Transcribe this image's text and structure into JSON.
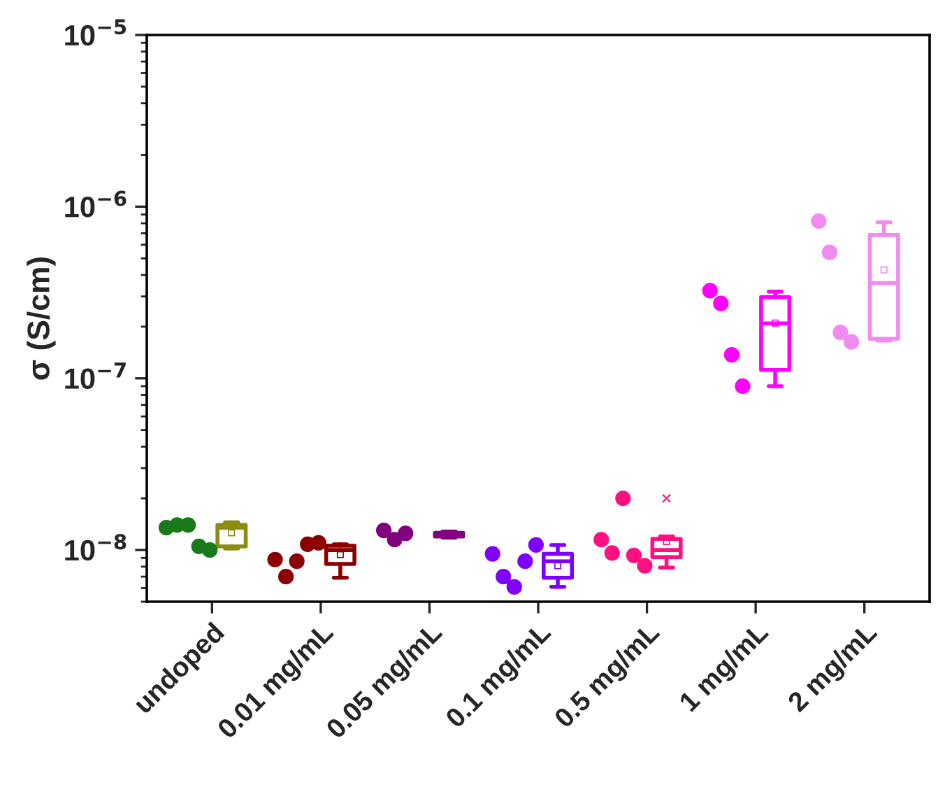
{
  "chart_data": {
    "type": "box",
    "ylabel": "σ (S/cm)",
    "categories": [
      "undoped",
      "0.01 mg/mL",
      "0.05 mg/mL",
      "0.1 mg/mL",
      "0.5 mg/mL",
      "1 mg/mL",
      "2 mg/mL"
    ],
    "log": "y",
    "ylim": [
      5e-09,
      1e-05
    ],
    "yticks": [
      {
        "value": 1e-08,
        "label": "10$^{−8}$"
      },
      {
        "value": 1e-07,
        "label": "10$^{−7}$"
      },
      {
        "value": 1e-06,
        "label": "10$^{−6}$"
      },
      {
        "value": 1e-05,
        "label": "10$^{−5}$"
      }
    ],
    "grid": false,
    "legend": false,
    "series": [
      {
        "type": "box",
        "colors": [
          "#8c8c10",
          "#8b0000",
          "#800080",
          "#8000ff",
          "#ff1080",
          "#ff00ff",
          "#f08cf0"
        ],
        "boxes": [
          {
            "low": 1.02e-08,
            "q1": 1.05e-08,
            "median": 1.35e-08,
            "q3": 1.4e-08,
            "high": 1.45e-08,
            "mean": 1.26e-08
          },
          {
            "low": 6.9e-09,
            "q1": 8.3e-09,
            "median": 1e-08,
            "q3": 1.06e-08,
            "high": 1.08e-08,
            "mean": 9.4e-09
          },
          {
            "low": 1.18e-08,
            "q1": 1.2e-08,
            "median": 1.23e-08,
            "q3": 1.26e-08,
            "high": 1.28e-08,
            "mean": 1.23e-08
          },
          {
            "low": 6.1e-09,
            "q1": 6.9e-09,
            "median": 8.6e-09,
            "q3": 9.5e-09,
            "high": 1.07e-08,
            "mean": 8.1e-09
          },
          {
            "low": 7.9e-09,
            "q1": 9.1e-09,
            "median": 1e-08,
            "q3": 1.16e-08,
            "high": 1.2e-08,
            "mean": 1.12e-08,
            "outliers": [
              2e-08
            ]
          },
          {
            "low": 9e-08,
            "q1": 1.12e-07,
            "median": 2.09e-07,
            "q3": 2.97e-07,
            "high": 3.2e-07,
            "mean": 2.1e-07
          },
          {
            "low": 1.66e-07,
            "q1": 1.7e-07,
            "median": 3.59e-07,
            "q3": 6.84e-07,
            "high": 8.1e-07,
            "mean": 4.28e-07
          }
        ]
      },
      {
        "type": "scatter",
        "marker": "circle",
        "x": [
          "undoped",
          "undoped",
          "undoped",
          "undoped",
          "undoped",
          "0.01 mg/mL",
          "0.01 mg/mL",
          "0.01 mg/mL",
          "0.01 mg/mL",
          "0.01 mg/mL",
          "0.05 mg/mL",
          "0.05 mg/mL",
          "0.05 mg/mL",
          "0.1 mg/mL",
          "0.1 mg/mL",
          "0.1 mg/mL",
          "0.1 mg/mL",
          "0.1 mg/mL",
          "0.5 mg/mL",
          "0.5 mg/mL",
          "0.5 mg/mL",
          "0.5 mg/mL",
          "0.5 mg/mL",
          "1 mg/mL",
          "1 mg/mL",
          "1 mg/mL",
          "1 mg/mL",
          "2 mg/mL",
          "2 mg/mL",
          "2 mg/mL",
          "2 mg/mL"
        ],
        "values": [
          1.35e-08,
          1.4e-08,
          1.4e-08,
          1.05e-08,
          1e-08,
          8.8e-09,
          7e-09,
          8.6e-09,
          1.08e-08,
          1.1e-08,
          1.3e-08,
          1.15e-08,
          1.25e-08,
          9.5e-09,
          7e-09,
          6.1e-09,
          8.6e-09,
          1.07e-08,
          1.15e-08,
          9.6e-09,
          2e-08,
          9.3e-09,
          8.1e-09,
          3.24e-07,
          2.73e-07,
          1.37e-07,
          9e-08,
          8.24e-07,
          5.42e-07,
          1.85e-07,
          1.63e-07
        ],
        "colors": [
          "#1a7a1a",
          "#1a7a1a",
          "#1a7a1a",
          "#1a7a1a",
          "#1a7a1a",
          "#8b0000",
          "#8b0000",
          "#8b0000",
          "#8b0000",
          "#8b0000",
          "#800080",
          "#800080",
          "#800080",
          "#8000ff",
          "#8000ff",
          "#8000ff",
          "#8000ff",
          "#8000ff",
          "#ff1080",
          "#ff1080",
          "#ff1080",
          "#ff1080",
          "#ff1080",
          "#ff00ff",
          "#ff00ff",
          "#ff00ff",
          "#ff00ff",
          "#f08cf0",
          "#f08cf0",
          "#f08cf0",
          "#f08cf0"
        ]
      }
    ]
  }
}
